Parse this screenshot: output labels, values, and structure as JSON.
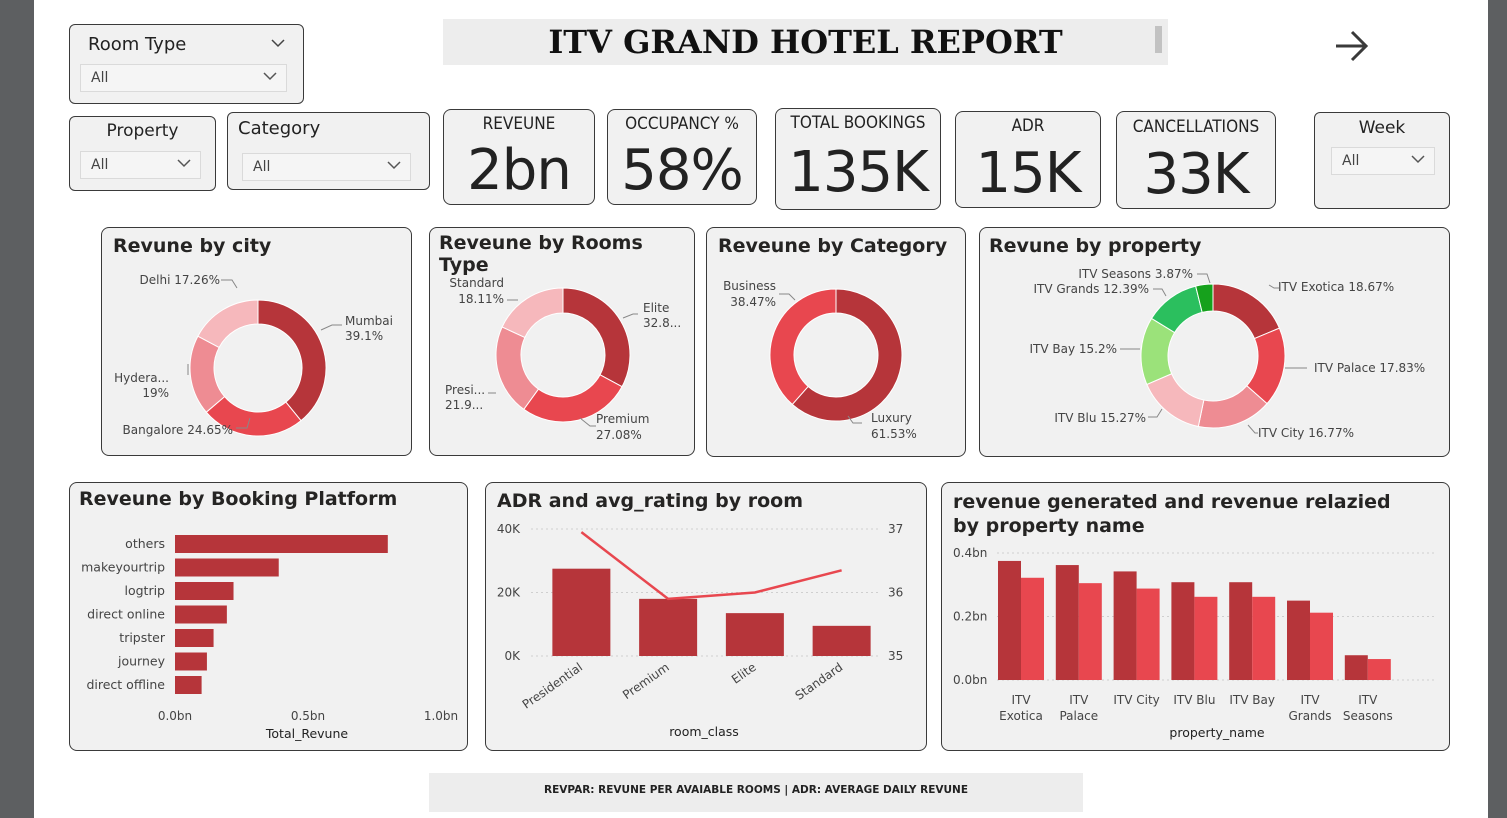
{
  "report_title": "ITV GRAND HOTEL  REPORT",
  "footer_note": "REVPAR: REVUNE PER AVAIABLE ROOMS |  ADR: AVERAGE DAILY REVUNE",
  "slicers": {
    "room_type": {
      "label": "Room Type",
      "value": "All"
    },
    "property": {
      "label": "Property",
      "value": "All"
    },
    "category": {
      "label": "Category",
      "value": "All"
    },
    "week": {
      "label": "Week",
      "value": "All"
    }
  },
  "kpis": {
    "revenue": {
      "label": "REVEUNE",
      "value": "2bn"
    },
    "occupancy": {
      "label": "OCCUPANCY %",
      "value": "58%"
    },
    "total_bookings": {
      "label": "TOTAL BOOKINGS",
      "value": "135K"
    },
    "adr": {
      "label": "ADR",
      "value": "15K"
    },
    "cancellations": {
      "label": "CANCELLATIONS",
      "value": "33K"
    }
  },
  "colors": {
    "dark_red": "#b6353a",
    "red": "#e8474f",
    "mid_pink": "#ee8c93",
    "light_pink": "#f6b8bc",
    "light_green": "#9be27a",
    "green": "#2bbf5e",
    "dark_green": "#16a11c",
    "panel_bg": "#f1f1f1",
    "title_bar": "#ededed"
  },
  "chart_data": [
    {
      "id": "city",
      "type": "pie",
      "title": "Revune by city",
      "slices": [
        {
          "label": "Mumbai",
          "pct_text": "39.1%",
          "value": 39.1
        },
        {
          "label": "Bangalore",
          "pct_text": "24.65%",
          "value": 24.65
        },
        {
          "label": "Hydera...",
          "pct_text": "19%",
          "value": 19.0
        },
        {
          "label": "Delhi",
          "pct_text": "17.26%",
          "value": 17.26
        }
      ],
      "label_texts": [
        "Delhi 17.26%",
        "Mumbai",
        "39.1%",
        "Hydera...",
        "19%",
        "Bangalore 24.65%"
      ]
    },
    {
      "id": "rooms",
      "type": "pie",
      "title": "Reveune by Rooms Type",
      "slices": [
        {
          "label": "Elite",
          "pct_text": "32.8...",
          "value": 32.8
        },
        {
          "label": "Premium",
          "pct_text": "27.08%",
          "value": 27.08
        },
        {
          "label": "Presi...",
          "pct_text": "21.9...",
          "value": 21.9
        },
        {
          "label": "Standard",
          "pct_text": "18.11%",
          "value": 18.11
        }
      ],
      "label_texts": [
        "Standard",
        "18.11%",
        "Elite",
        "32.8...",
        "Presi...",
        "21.9...",
        "Premium",
        "27.08%"
      ]
    },
    {
      "id": "category",
      "type": "pie",
      "title": "Reveune by Category",
      "slices": [
        {
          "label": "Luxury",
          "pct_text": "61.53%",
          "value": 61.53
        },
        {
          "label": "Business",
          "pct_text": "38.47%",
          "value": 38.47
        }
      ],
      "label_texts": [
        "Business",
        "38.47%",
        "Luxury",
        "61.53%"
      ]
    },
    {
      "id": "property",
      "type": "pie",
      "title": "Revune by property",
      "slices": [
        {
          "label": "ITV Exotica",
          "pct_text": "18.67%",
          "value": 18.67
        },
        {
          "label": "ITV Palace",
          "pct_text": "17.83%",
          "value": 17.83
        },
        {
          "label": "ITV City",
          "pct_text": "16.77%",
          "value": 16.77
        },
        {
          "label": "ITV Blu",
          "pct_text": "15.27%",
          "value": 15.27
        },
        {
          "label": "ITV Bay",
          "pct_text": "15.2%",
          "value": 15.2
        },
        {
          "label": "ITV Grands",
          "pct_text": "12.39%",
          "value": 12.39
        },
        {
          "label": "ITV Seasons",
          "pct_text": "3.87%",
          "value": 3.87
        }
      ],
      "label_texts": [
        "ITV Seasons 3.87%",
        "ITV Grands 12.39%",
        "ITV Exotica 18.67%",
        "ITV Bay 15.2%",
        "ITV Palace 17.83%",
        "ITV Blu 15.27%",
        "ITV City 16.77%"
      ]
    },
    {
      "id": "platform",
      "type": "bar",
      "orientation": "horizontal",
      "title": "Reveune by Booking Platform",
      "categories": [
        "others",
        "makeyourtrip",
        "logtrip",
        "direct online",
        "tripster",
        "journey",
        "direct offline"
      ],
      "values": [
        0.8,
        0.39,
        0.22,
        0.195,
        0.145,
        0.12,
        0.1
      ],
      "xlabel": "Total_Revune",
      "xlim": [
        0,
        1.0
      ],
      "xticks": [
        "0.0bn",
        "0.5bn",
        "1.0bn"
      ]
    },
    {
      "id": "adr_rating",
      "type": "bar",
      "title": "ADR and avg_rating by room",
      "categories": [
        "Presidential",
        "Premium",
        "Elite",
        "Standard"
      ],
      "series": [
        {
          "kind": "bar",
          "axis": "left",
          "values": [
            27500,
            18000,
            13500,
            9500
          ]
        },
        {
          "kind": "line",
          "axis": "right",
          "values": [
            36.95,
            35.9,
            36.0,
            36.35
          ]
        }
      ],
      "xlabel": "room_class",
      "ylim": [
        0,
        40000
      ],
      "yticks": [
        "0K",
        "20K",
        "40K"
      ],
      "y2lim": [
        35,
        37
      ],
      "y2ticks": [
        "35",
        "36",
        "37"
      ]
    },
    {
      "id": "gen_realized",
      "type": "bar",
      "title": "revenue generated and revenue relazied by property name",
      "categories": [
        [
          "ITV",
          "Exotica"
        ],
        [
          "ITV",
          "Palace"
        ],
        [
          "ITV City"
        ],
        [
          "ITV Blu"
        ],
        [
          "ITV Bay"
        ],
        [
          "ITV",
          "Grands"
        ],
        [
          "ITV",
          "Seasons"
        ]
      ],
      "series": [
        {
          "values": [
            0.375,
            0.362,
            0.342,
            0.308,
            0.308,
            0.25,
            0.078
          ]
        },
        {
          "values": [
            0.322,
            0.305,
            0.288,
            0.262,
            0.262,
            0.212,
            0.066
          ]
        }
      ],
      "xlabel": "property_name",
      "ylim": [
        0,
        0.4
      ],
      "yticks": [
        "0.0bn",
        "0.2bn",
        "0.4bn"
      ]
    }
  ]
}
